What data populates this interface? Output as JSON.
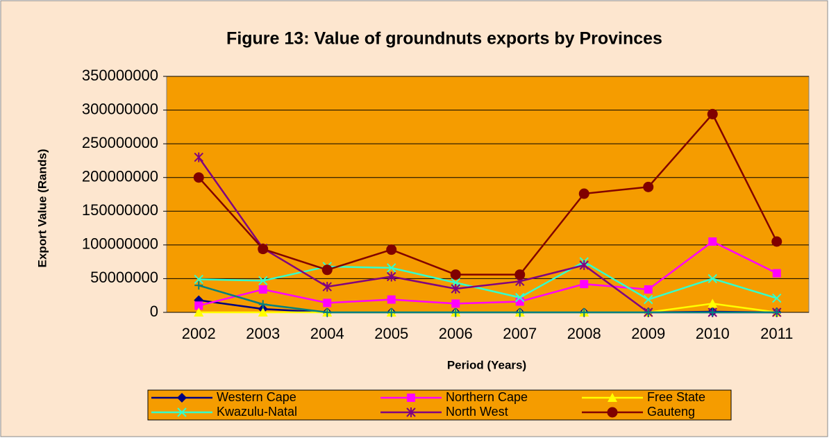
{
  "chart_data": {
    "type": "line",
    "title": "Figure 13: Value of groundnuts exports by Provinces",
    "x_label": "Period (Years)",
    "y_label": "Export Value (Rands)",
    "categories": [
      "2002",
      "2003",
      "2004",
      "2005",
      "2006",
      "2007",
      "2008",
      "2009",
      "2010",
      "2011"
    ],
    "ylim": [
      0,
      350000000
    ],
    "yticks": [
      0,
      50000000,
      100000000,
      150000000,
      200000000,
      250000000,
      300000000,
      350000000
    ],
    "grid": true,
    "legend": "bottom",
    "series": [
      {
        "name": "Western Cape",
        "color": "#000080",
        "marker": "diamond",
        "values": [
          18000000,
          5000000,
          0,
          0,
          0,
          0,
          0,
          0,
          1000000,
          0
        ]
      },
      {
        "name": "Northern Cape",
        "color": "#ff00ff",
        "marker": "square",
        "values": [
          10000000,
          34000000,
          14000000,
          19000000,
          13000000,
          16000000,
          42000000,
          34000000,
          105000000,
          58000000
        ]
      },
      {
        "name": "Free State",
        "color": "#ffff00",
        "marker": "triangle",
        "values": [
          0,
          0,
          0,
          0,
          0,
          0,
          0,
          0,
          13000000,
          0
        ]
      },
      {
        "name": "Kwazulu-Natal",
        "color": "#33ffcc",
        "marker": "x",
        "values": [
          49000000,
          47000000,
          68000000,
          66000000,
          44000000,
          22000000,
          75000000,
          19000000,
          50000000,
          21000000
        ]
      },
      {
        "name": "North West",
        "color": "#800080",
        "marker": "star",
        "values": [
          230000000,
          95000000,
          38000000,
          53000000,
          35000000,
          46000000,
          70000000,
          0,
          0,
          0
        ]
      },
      {
        "name": "Gauteng",
        "color": "#800000",
        "marker": "circle",
        "values": [
          200000000,
          94000000,
          63000000,
          93000000,
          56000000,
          56000000,
          176000000,
          186000000,
          294000000,
          105000000
        ]
      },
      {
        "color": "#008080",
        "marker": "plus",
        "values": [
          40000000,
          12000000,
          0,
          0,
          0,
          0,
          0,
          0,
          0,
          0
        ]
      }
    ]
  }
}
